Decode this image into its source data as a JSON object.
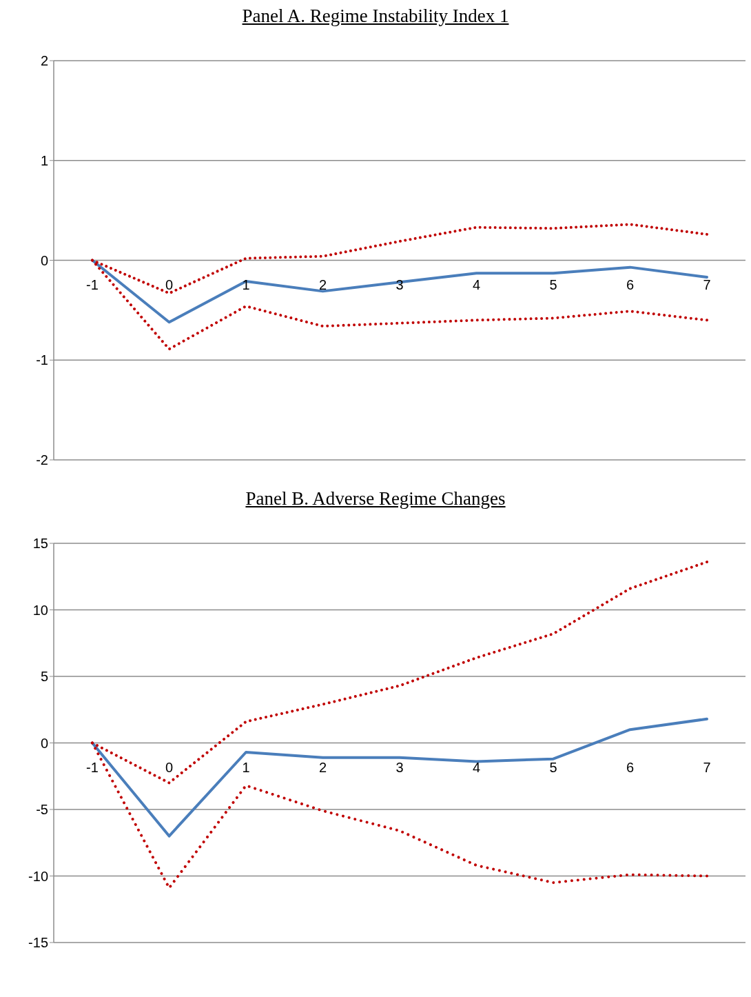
{
  "chart_data": [
    {
      "type": "line",
      "title": "Panel A. Regime Instability Index 1",
      "categories": [
        "-1",
        "0",
        "1",
        "2",
        "3",
        "4",
        "5",
        "6",
        "7"
      ],
      "ylim": [
        -2,
        2
      ],
      "yticks": [
        -2,
        -1,
        0,
        1,
        2
      ],
      "grid": "y",
      "marker": "none",
      "series": [
        {
          "color": "#4a7ebb",
          "line_style": "solid",
          "values": [
            0,
            -0.62,
            -0.21,
            -0.31,
            -0.22,
            -0.13,
            -0.13,
            -0.07,
            -0.17
          ]
        },
        {
          "color": "#c00000",
          "line_style": "dotted",
          "values": [
            0,
            -0.33,
            0.02,
            0.04,
            0.19,
            0.33,
            0.32,
            0.36,
            0.26
          ]
        },
        {
          "color": "#c00000",
          "line_style": "dotted",
          "values": [
            0,
            -0.89,
            -0.46,
            -0.66,
            -0.63,
            -0.6,
            -0.58,
            -0.51,
            -0.6
          ]
        }
      ]
    },
    {
      "type": "line",
      "title": "Panel B. Adverse Regime Changes",
      "categories": [
        "-1",
        "0",
        "1",
        "2",
        "3",
        "4",
        "5",
        "6",
        "7"
      ],
      "ylim": [
        -15,
        15
      ],
      "yticks": [
        -15,
        -10,
        -5,
        0,
        5,
        10,
        15
      ],
      "grid": "y",
      "marker": "none",
      "series": [
        {
          "color": "#4a7ebb",
          "line_style": "solid",
          "values": [
            0,
            -7.0,
            -0.7,
            -1.1,
            -1.1,
            -1.4,
            -1.2,
            1.0,
            1.8
          ]
        },
        {
          "color": "#c00000",
          "line_style": "dotted",
          "values": [
            0,
            -3.0,
            1.6,
            2.9,
            4.3,
            6.4,
            8.2,
            11.6,
            13.6
          ]
        },
        {
          "color": "#c00000",
          "line_style": "dotted",
          "values": [
            0,
            -10.9,
            -3.2,
            -5.1,
            -6.6,
            -9.2,
            -10.5,
            -9.9,
            -10.0
          ]
        }
      ]
    }
  ]
}
